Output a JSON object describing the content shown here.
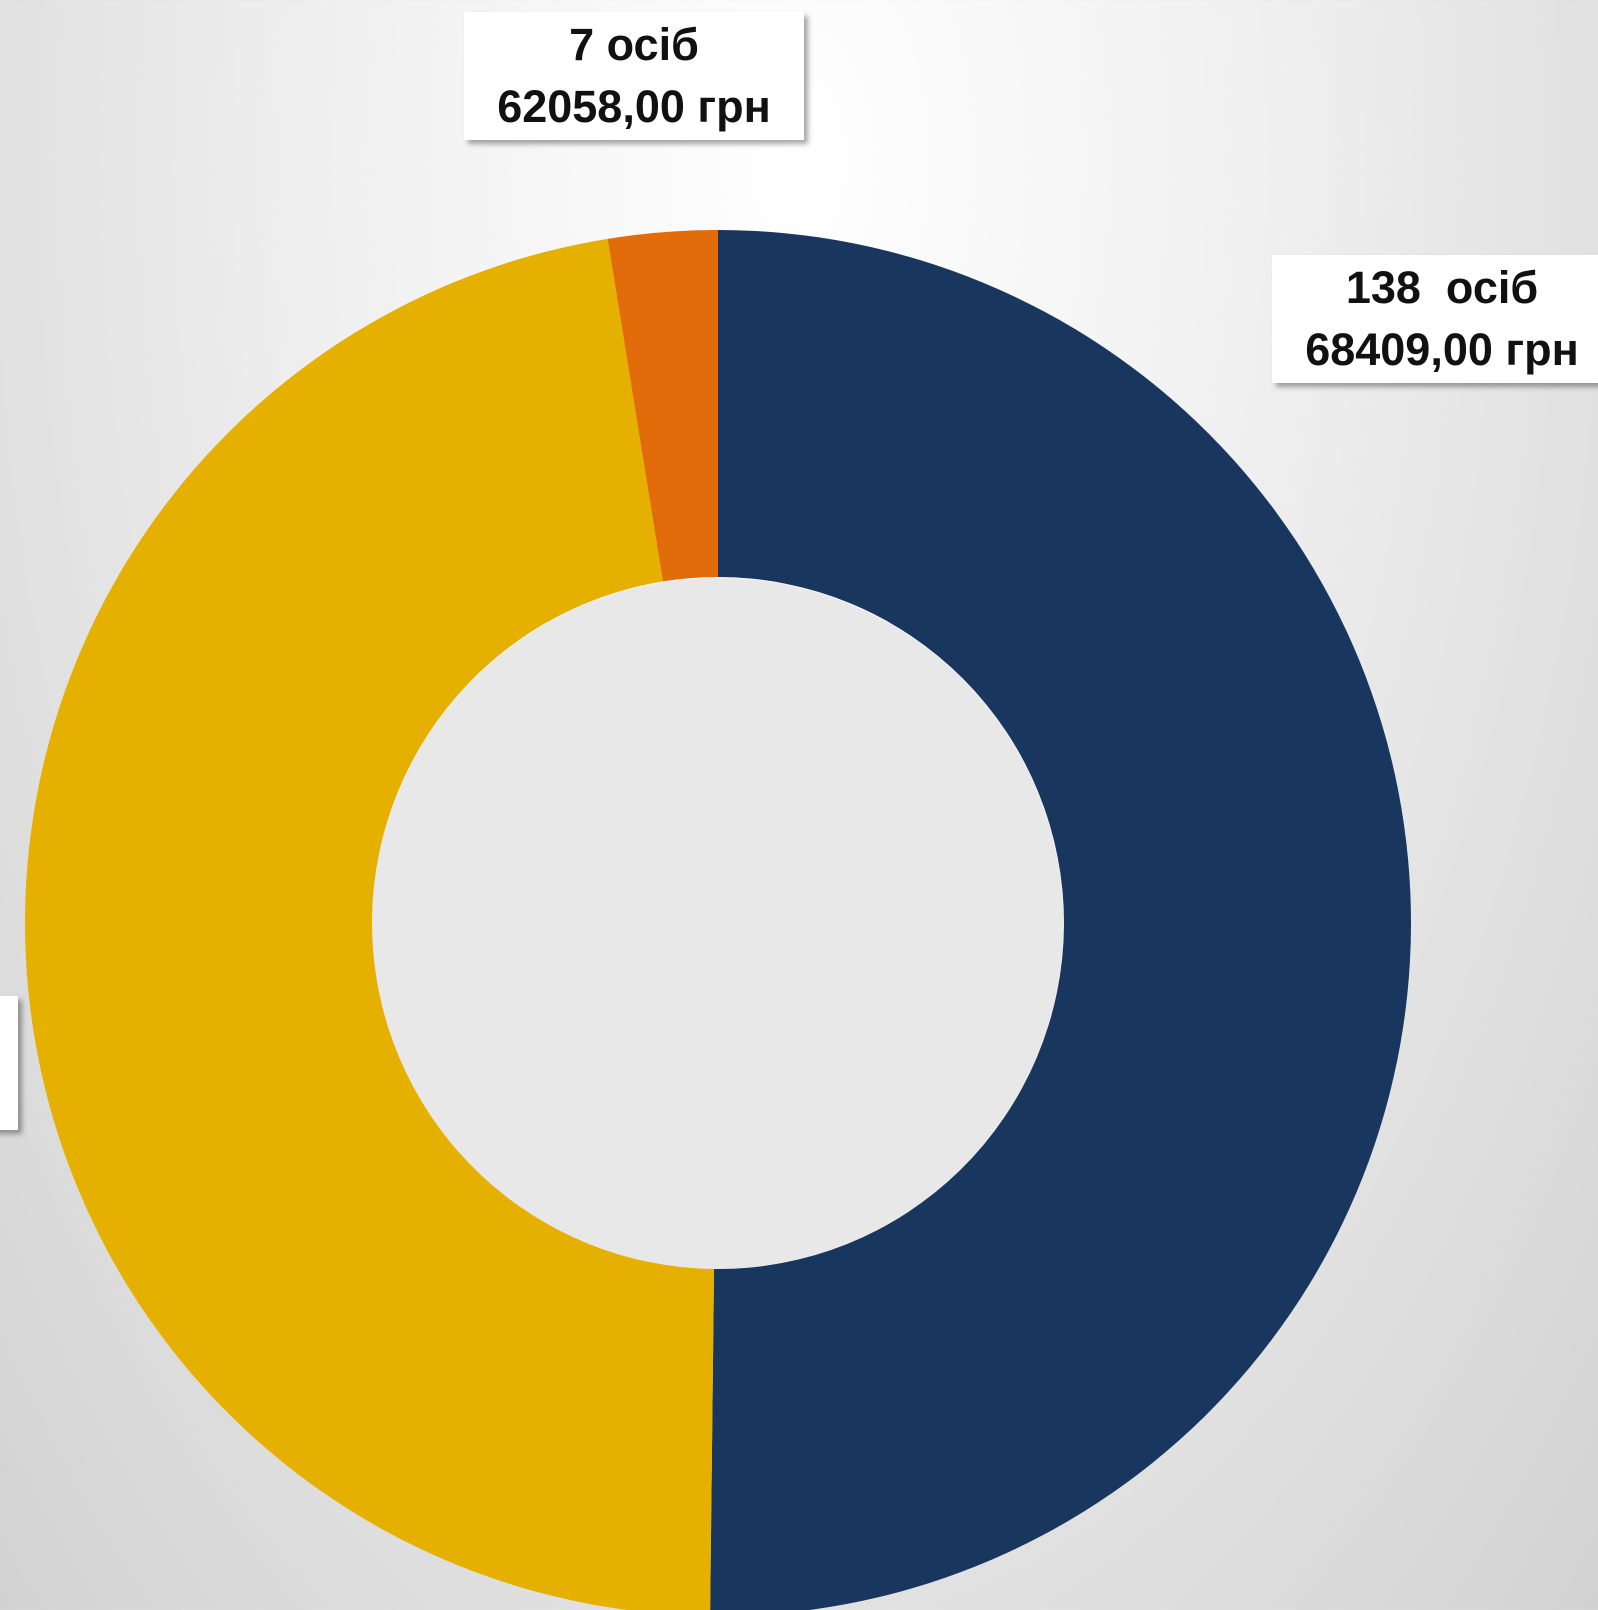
{
  "chart_data": {
    "type": "donut",
    "values": [
      138,
      130,
      7
    ],
    "colors": [
      "#19365e",
      "#e5b000",
      "#e36c0a"
    ],
    "value_labels": [
      [
        "138  осіб",
        "68409,00 грн"
      ],
      null,
      [
        "7 осіб",
        "62058,00 грн"
      ]
    ]
  }
}
